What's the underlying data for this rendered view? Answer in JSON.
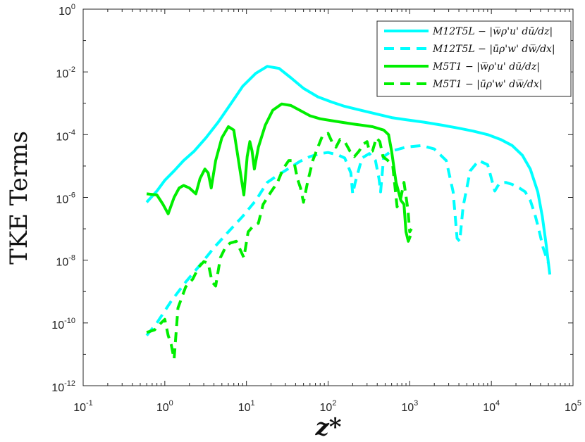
{
  "chart_data": {
    "type": "line",
    "xscale": "log",
    "yscale": "log",
    "xlim": [
      0.1,
      100000
    ],
    "ylim": [
      1e-12,
      1
    ],
    "xlabel": "z*",
    "ylabel": "TKE Terms",
    "x_tick_labels": [
      {
        "base": "10",
        "exp": "-1"
      },
      {
        "base": "10",
        "exp": "0"
      },
      {
        "base": "10",
        "exp": "1"
      },
      {
        "base": "10",
        "exp": "2"
      },
      {
        "base": "10",
        "exp": "3"
      },
      {
        "base": "10",
        "exp": "4"
      },
      {
        "base": "10",
        "exp": "5"
      }
    ],
    "y_tick_labels": [
      {
        "base": "10",
        "exp": "-12"
      },
      {
        "base": "10",
        "exp": "-10"
      },
      {
        "base": "10",
        "exp": "-8"
      },
      {
        "base": "10",
        "exp": "-6"
      },
      {
        "base": "10",
        "exp": "-4"
      },
      {
        "base": "10",
        "exp": "-2"
      },
      {
        "base": "10",
        "exp": "0"
      }
    ],
    "legend_position": "top-right",
    "series": [
      {
        "name": "M12T5L − |w̅ρ'u' dū/dz|",
        "color": "#00ffff",
        "style": "solid",
        "points": [
          [
            0.6,
            7e-07
          ],
          [
            0.8,
            1.6e-06
          ],
          [
            1.0,
            3.5e-06
          ],
          [
            1.3,
            7e-06
          ],
          [
            1.7,
            1.5e-05
          ],
          [
            2.3,
            3e-05
          ],
          [
            3.2,
            8e-05
          ],
          [
            4.5,
            0.00025
          ],
          [
            6.5,
            0.001
          ],
          [
            9,
            0.0035
          ],
          [
            13,
            0.009
          ],
          [
            18,
            0.015
          ],
          [
            25,
            0.013
          ],
          [
            35,
            0.0065
          ],
          [
            50,
            0.003
          ],
          [
            75,
            0.0016
          ],
          [
            110,
            0.0011
          ],
          [
            160,
            0.0008
          ],
          [
            250,
            0.0006
          ],
          [
            400,
            0.00045
          ],
          [
            600,
            0.00035
          ],
          [
            900,
            0.0003
          ],
          [
            1500,
            0.00025
          ],
          [
            2500,
            0.0002
          ],
          [
            4000,
            0.00016
          ],
          [
            6000,
            0.00013
          ],
          [
            9000,
            0.0001
          ],
          [
            13000,
            7e-05
          ],
          [
            18000,
            4.5e-05
          ],
          [
            24000,
            2.2e-05
          ],
          [
            30000,
            8e-06
          ],
          [
            37000,
            1.5e-06
          ],
          [
            42000,
            2.5e-07
          ],
          [
            47000,
            3e-08
          ],
          [
            52000,
            3.5e-09
          ]
        ]
      },
      {
        "name": "M12T5L − |ūρ'w' dw̅/dx|",
        "color": "#00ffff",
        "style": "dashed",
        "points": [
          [
            0.6,
            4e-11
          ],
          [
            0.8,
            1e-10
          ],
          [
            1.2,
            5e-10
          ],
          [
            1.8,
            2e-09
          ],
          [
            2.7,
            7e-09
          ],
          [
            4,
            2.5e-08
          ],
          [
            6,
            8e-08
          ],
          [
            9,
            2.5e-07
          ],
          [
            13,
            8e-07
          ],
          [
            18,
            3e-06
          ],
          [
            24,
            5e-06
          ],
          [
            32,
            8e-06
          ],
          [
            45,
            1.4e-05
          ],
          [
            60,
            2e-05
          ],
          [
            80,
            2.5e-05
          ],
          [
            100,
            2.7e-05
          ],
          [
            130,
            2.3e-05
          ],
          [
            160,
            1.8e-05
          ],
          [
            190,
            6e-06
          ],
          [
            200,
            1.3e-06
          ],
          [
            215,
            3e-06
          ],
          [
            260,
            1.8e-05
          ],
          [
            320,
            2.5e-05
          ],
          [
            380,
            1.5e-05
          ],
          [
            420,
            4e-06
          ],
          [
            440,
            1.5e-06
          ],
          [
            480,
            2e-05
          ],
          [
            600,
            3e-05
          ],
          [
            900,
            4e-05
          ],
          [
            1400,
            4.5e-05
          ],
          [
            2000,
            3.5e-05
          ],
          [
            2800,
            1.5e-05
          ],
          [
            3400,
            1.5e-06
          ],
          [
            3800,
            5e-08
          ],
          [
            4100,
            4e-08
          ],
          [
            4500,
            5e-07
          ],
          [
            5500,
            7e-06
          ],
          [
            7000,
            1.5e-05
          ],
          [
            9000,
            1.1e-05
          ],
          [
            11000,
            1.6e-06
          ],
          [
            12500,
            2.8e-06
          ],
          [
            15000,
            3e-06
          ],
          [
            18000,
            2.6e-06
          ],
          [
            22000,
            2e-06
          ],
          [
            26000,
            1.5e-06
          ],
          [
            30000,
            8e-07
          ],
          [
            34000,
            3e-07
          ],
          [
            38000,
            1e-07
          ],
          [
            43000,
            2.5e-08
          ],
          [
            50000,
            8e-09
          ]
        ]
      },
      {
        "name": "M5T1 − |w̅ρ'u' dū/dz|",
        "color": "#00ee00",
        "style": "solid",
        "points": [
          [
            0.6,
            1.3e-06
          ],
          [
            0.8,
            1.2e-06
          ],
          [
            0.95,
            6e-07
          ],
          [
            1.1,
            3e-07
          ],
          [
            1.3,
            1e-06
          ],
          [
            1.5,
            2e-06
          ],
          [
            1.7,
            2.4e-06
          ],
          [
            2.0,
            2e-06
          ],
          [
            2.4,
            1.3e-06
          ],
          [
            2.7,
            4e-06
          ],
          [
            3.1,
            8e-06
          ],
          [
            3.4,
            6e-06
          ],
          [
            3.7,
            2e-06
          ],
          [
            4.2,
            1.5e-05
          ],
          [
            5,
            8e-05
          ],
          [
            6,
            0.00018
          ],
          [
            7,
            0.00014
          ],
          [
            8,
            1.5e-05
          ],
          [
            9.3,
            1.2e-06
          ],
          [
            10.2,
            2e-05
          ],
          [
            11,
            6e-05
          ],
          [
            11.7,
            3e-05
          ],
          [
            12.5,
            8e-06
          ],
          [
            14,
            4e-05
          ],
          [
            17,
            0.0002
          ],
          [
            21,
            0.0006
          ],
          [
            27,
            0.00095
          ],
          [
            35,
            0.00085
          ],
          [
            45,
            0.0006
          ],
          [
            60,
            0.0004
          ],
          [
            80,
            0.00032
          ],
          [
            120,
            0.00027
          ],
          [
            200,
            0.00022
          ],
          [
            350,
            0.00018
          ],
          [
            480,
            0.00014
          ],
          [
            550,
            0.0001
          ],
          [
            600,
            3e-05
          ],
          [
            680,
            3e-06
          ],
          [
            780,
            8e-07
          ],
          [
            850,
            6e-07
          ],
          [
            900,
            8e-08
          ],
          [
            960,
            4e-08
          ],
          [
            1020,
            6e-08
          ]
        ]
      },
      {
        "name": "M5T1 − |ūρ'w' dw̅/dx|",
        "color": "#00ee00",
        "style": "dashed",
        "points": [
          [
            0.6,
            5e-11
          ],
          [
            0.75,
            6e-11
          ],
          [
            0.9,
            1e-10
          ],
          [
            1.0,
            1.3e-10
          ],
          [
            1.1,
            4e-11
          ],
          [
            1.2,
            2e-11
          ],
          [
            1.3,
            7e-12
          ],
          [
            1.45,
            3e-10
          ],
          [
            1.8,
            1.4e-09
          ],
          [
            2.2,
            2.5e-09
          ],
          [
            2.6,
            6e-09
          ],
          [
            3.0,
            9e-09
          ],
          [
            3.4,
            8e-09
          ],
          [
            3.8,
            2e-09
          ],
          [
            4.2,
            1.5e-09
          ],
          [
            4.8,
            1.2e-08
          ],
          [
            5.5,
            2.5e-08
          ],
          [
            6.3,
            3.5e-08
          ],
          [
            7.5,
            4e-08
          ],
          [
            8.5,
            2e-08
          ],
          [
            9.3,
            1.2e-08
          ],
          [
            10.5,
            8e-08
          ],
          [
            12,
            1.2e-07
          ],
          [
            14,
            1.5e-07
          ],
          [
            16,
            6e-07
          ],
          [
            20,
            1.5e-06
          ],
          [
            24,
            3e-06
          ],
          [
            28,
            8e-06
          ],
          [
            33,
            1.5e-05
          ],
          [
            38,
            1.5e-05
          ],
          [
            42,
            4e-06
          ],
          [
            46,
            2e-06
          ],
          [
            50,
            7e-07
          ],
          [
            56,
            3e-06
          ],
          [
            65,
            1.5e-05
          ],
          [
            75,
            4e-05
          ],
          [
            85,
            9e-05
          ],
          [
            100,
            0.00011
          ],
          [
            115,
            5e-05
          ],
          [
            125,
            4e-05
          ],
          [
            140,
            7e-05
          ],
          [
            160,
            6e-05
          ],
          [
            185,
            3e-05
          ],
          [
            210,
            2e-05
          ],
          [
            240,
            3e-05
          ],
          [
            270,
            5e-05
          ],
          [
            300,
            6e-05
          ],
          [
            320,
            3e-05
          ],
          [
            350,
            3e-05
          ],
          [
            390,
            8e-05
          ],
          [
            430,
            6e-05
          ],
          [
            470,
            2e-05
          ],
          [
            540,
            1.5e-05
          ],
          [
            620,
            1e-05
          ],
          [
            700,
            5e-07
          ],
          [
            780,
            1e-06
          ],
          [
            850,
            3e-06
          ],
          [
            950,
            4e-07
          ],
          [
            1000,
            8e-08
          ],
          [
            1050,
            1e-07
          ]
        ]
      }
    ]
  }
}
